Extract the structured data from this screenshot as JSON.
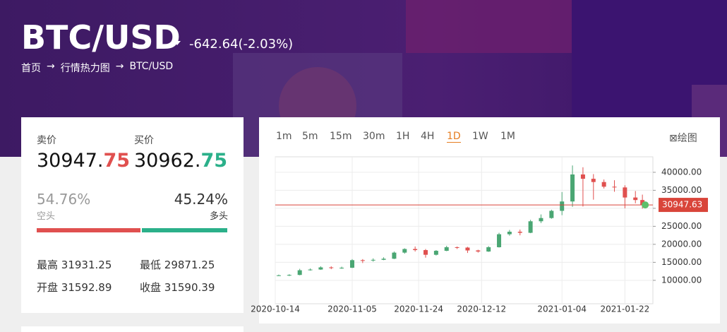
{
  "header": {
    "symbol": "BTC/USD",
    "change": "-642.64(-2.03%)",
    "breadcrumb": [
      "首页",
      "行情热力图",
      "BTC/USD"
    ]
  },
  "quote": {
    "sell_label": "卖价",
    "sell_int": "30947.",
    "sell_dec": "75",
    "buy_label": "买价",
    "buy_int": "30962.",
    "buy_dec": "75",
    "short": {
      "value": 54.76,
      "label": "54.76%"
    },
    "short_label": "空头",
    "long": {
      "value": 45.24,
      "label": "45.24%"
    },
    "long_label": "多头",
    "high_label": "最高",
    "high": 31931.25,
    "low_label": "最低",
    "low": 29871.25,
    "open_label": "开盘",
    "open": 31592.89,
    "close_label": "收盘",
    "close": 31590.39
  },
  "toolbar": {
    "intervals": [
      "1m",
      "5m",
      "15m",
      "30m",
      "1H",
      "4H",
      "1D",
      "1W",
      "1M"
    ],
    "active": "1D",
    "draw": "绘图"
  },
  "chart_data": {
    "type": "candlestick",
    "up_color": "#4aa673",
    "down_color": "#e0504f",
    "x": [
      "2020-10-15",
      "2020-10-18",
      "2020-10-21",
      "2020-10-24",
      "2020-10-27",
      "2020-10-30",
      "2020-11-02",
      "2020-11-05",
      "2020-11-08",
      "2020-11-11",
      "2020-11-14",
      "2020-11-17",
      "2020-11-20",
      "2020-11-23",
      "2020-11-26",
      "2020-11-29",
      "2020-12-02",
      "2020-12-05",
      "2020-12-08",
      "2020-12-11",
      "2020-12-14",
      "2020-12-17",
      "2020-12-20",
      "2020-12-23",
      "2020-12-26",
      "2020-12-29",
      "2021-01-01",
      "2021-01-04",
      "2021-01-07",
      "2021-01-10",
      "2021-01-13",
      "2021-01-16",
      "2021-01-19",
      "2021-01-22",
      "2021-01-25",
      "2021-01-27"
    ],
    "open": [
      11300,
      11400,
      11500,
      12800,
      13000,
      13600,
      13500,
      13500,
      15600,
      15500,
      15700,
      16000,
      17700,
      18700,
      18400,
      17100,
      18200,
      19200,
      19100,
      18300,
      18000,
      19200,
      22800,
      23500,
      23200,
      26400,
      27300,
      29300,
      31900,
      39400,
      38200,
      37300,
      36000,
      35800,
      33000,
      32300
    ],
    "high": [
      11600,
      11700,
      13200,
      13300,
      13900,
      13900,
      13800,
      15900,
      15900,
      16100,
      16400,
      18000,
      18900,
      19400,
      18700,
      18400,
      19600,
      19400,
      19300,
      18500,
      19500,
      23200,
      24000,
      24100,
      26800,
      28300,
      29600,
      34500,
      41900,
      41400,
      39500,
      38000,
      37800,
      36400,
      34800,
      33800
    ],
    "low": [
      11200,
      11200,
      11400,
      12700,
      12900,
      13100,
      13200,
      13400,
      14800,
      15200,
      15600,
      15900,
      17400,
      18000,
      16300,
      16900,
      18100,
      18700,
      17600,
      17700,
      17900,
      19100,
      22400,
      22500,
      23100,
      25900,
      27100,
      28100,
      30400,
      30500,
      32400,
      35500,
      34600,
      30000,
      31400,
      29900
    ],
    "close": [
      11400,
      11500,
      12800,
      13000,
      13600,
      13500,
      13500,
      15600,
      15500,
      15700,
      16000,
      17700,
      18700,
      18400,
      17100,
      18200,
      19200,
      19100,
      18300,
      18000,
      19200,
      22800,
      23500,
      23200,
      26400,
      27300,
      29300,
      31900,
      39400,
      38200,
      37300,
      36000,
      35800,
      33000,
      32300,
      30947.63
    ],
    "last_price": 30947.63,
    "last_color": "#d9453a",
    "xlim": [
      "2020-10-14",
      "2021-01-30"
    ],
    "xticks": [
      "2020-10-14",
      "2020-11-05",
      "2020-11-24",
      "2020-12-12",
      "2021-01-04",
      "2021-01-22"
    ],
    "ylim": [
      3500,
      44300
    ],
    "yticks": [
      {
        "value": 10000,
        "label": "10000.00"
      },
      {
        "value": 15000,
        "label": "15000.00"
      },
      {
        "value": 20000,
        "label": "20000.00"
      },
      {
        "value": 25000,
        "label": "25000.00"
      },
      {
        "value": 30000,
        "label": "30000.00"
      },
      {
        "value": 35000,
        "label": "35000.00"
      },
      {
        "value": 40000,
        "label": "40000.00"
      }
    ],
    "grid": true
  }
}
